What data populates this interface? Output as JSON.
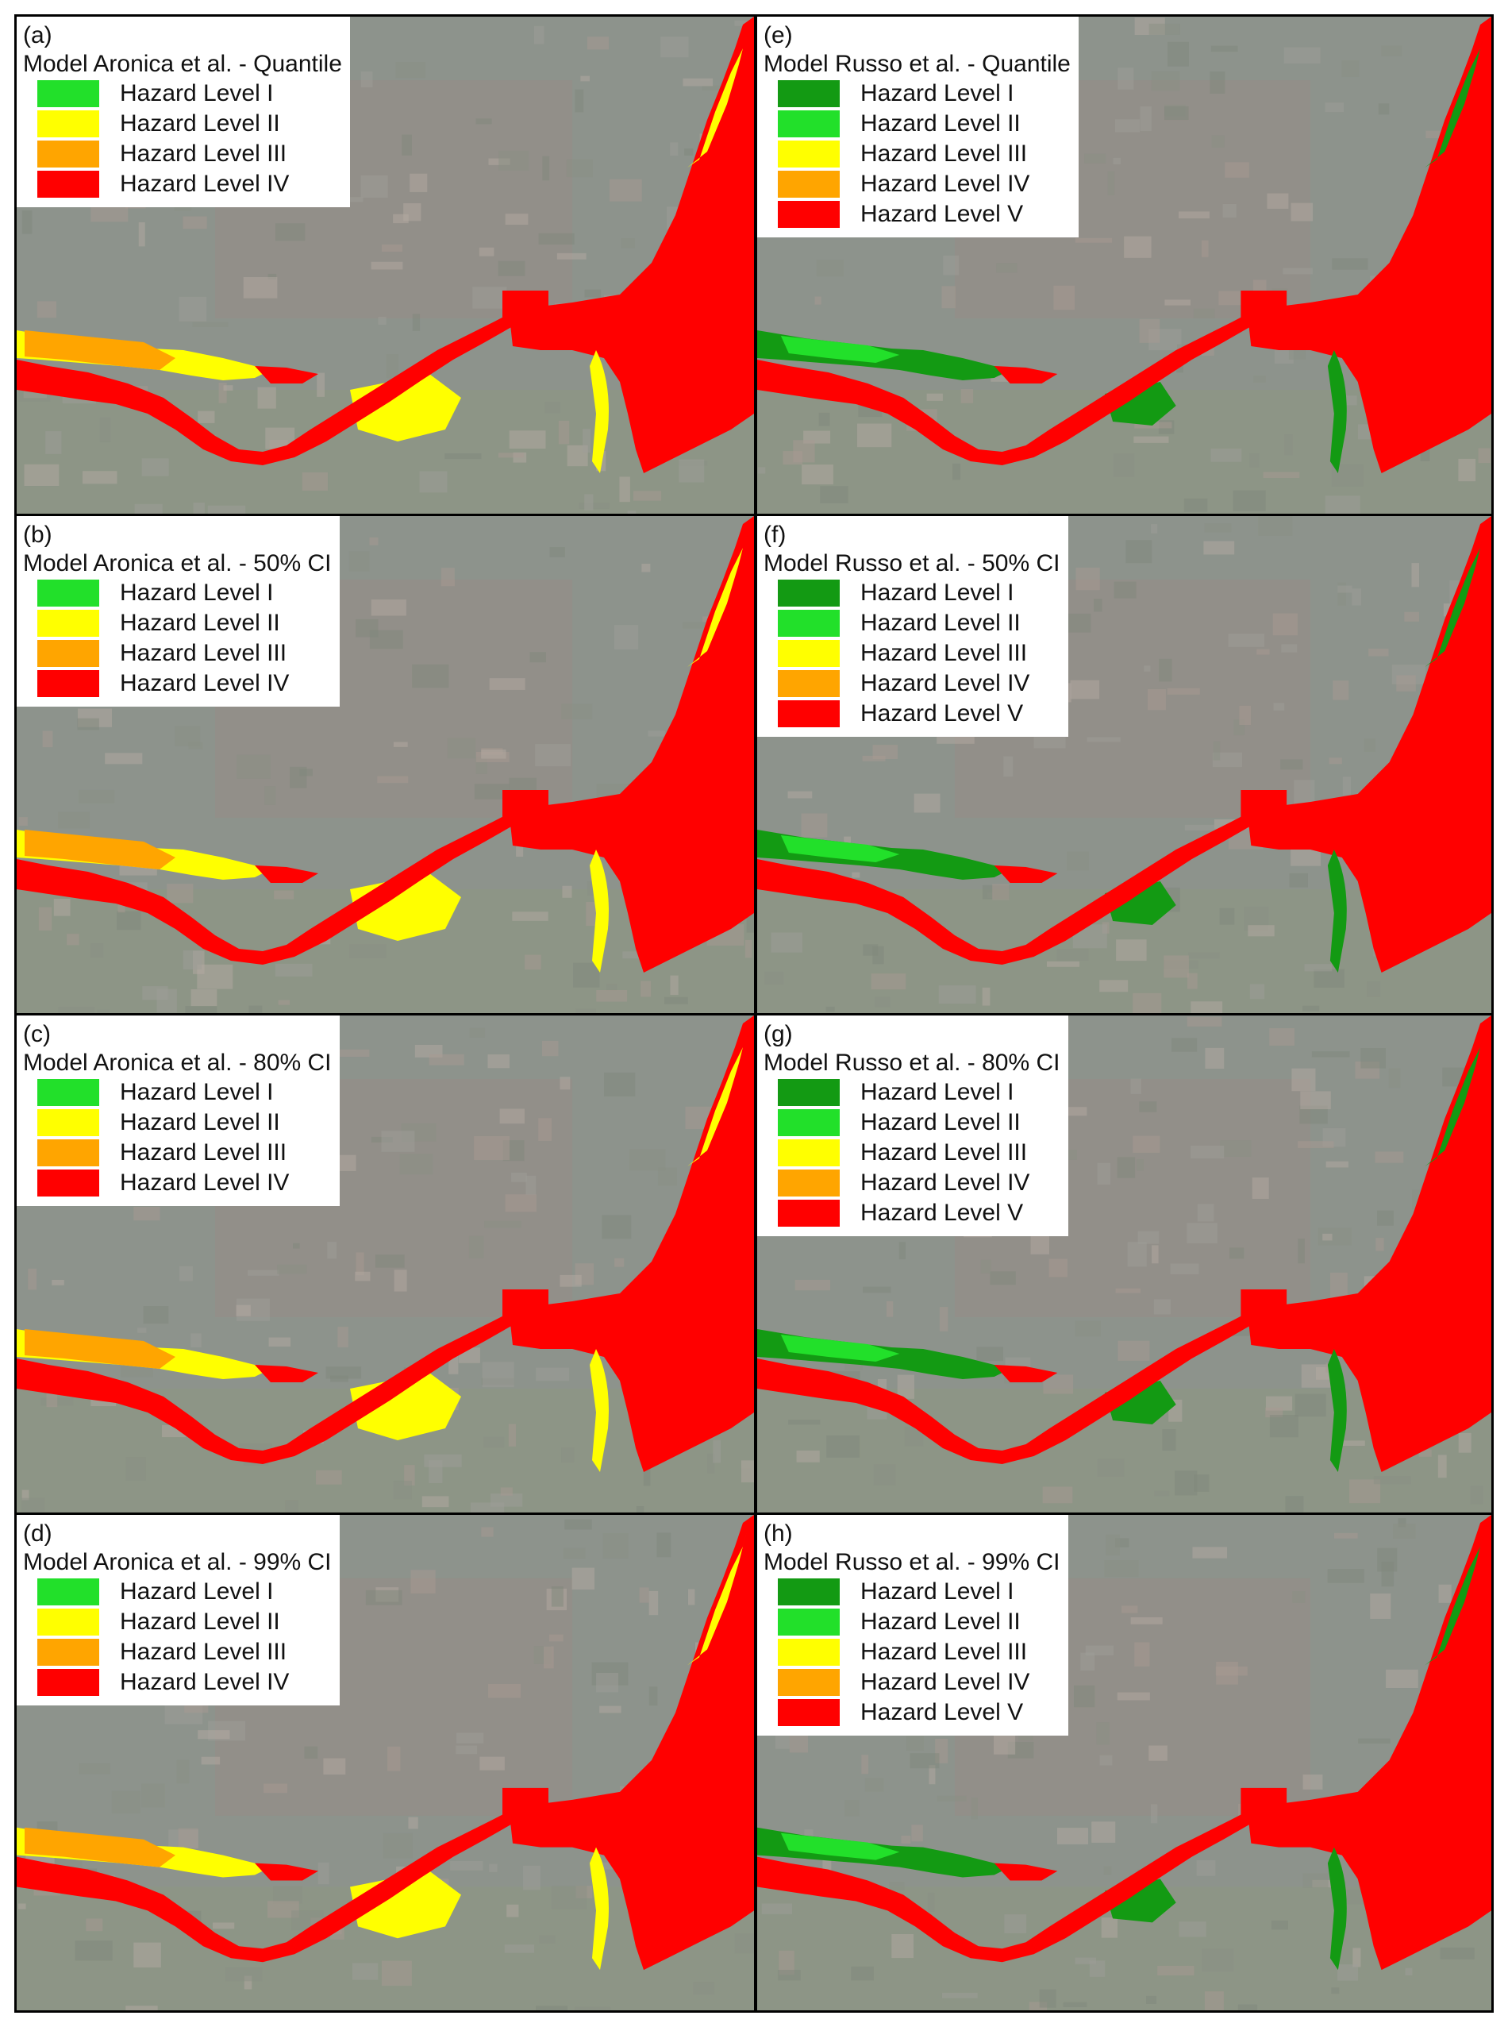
{
  "colors": {
    "level_green_light": "#22e02a",
    "level_green_dark": "#139a13",
    "level_yellow": "#ffff00",
    "level_orange": "#ffa500",
    "level_red": "#ff0000",
    "background_base": "#8d938c"
  },
  "left_legend_colors": [
    "#22e02a",
    "#ffff00",
    "#ffa500",
    "#ff0000"
  ],
  "right_legend_colors": [
    "#139a13",
    "#22e02a",
    "#ffff00",
    "#ffa500",
    "#ff0000"
  ],
  "panels": [
    {
      "letter": "(a)",
      "title": "Model Aronica et al. - Quantile",
      "items": [
        "Hazard Level I",
        "Hazard Level II",
        "Hazard Level III",
        "Hazard Level IV"
      ]
    },
    {
      "letter": "(b)",
      "title": "Model Aronica et al. - 50% CI",
      "items": [
        "Hazard Level I",
        "Hazard Level II",
        "Hazard Level III",
        "Hazard Level IV"
      ]
    },
    {
      "letter": "(c)",
      "title": "Model Aronica et al. - 80% CI",
      "items": [
        "Hazard Level I",
        "Hazard Level II",
        "Hazard Level III",
        "Hazard Level IV"
      ]
    },
    {
      "letter": "(d)",
      "title": "Model Aronica et al. - 99% CI",
      "items": [
        "Hazard Level I",
        "Hazard Level II",
        "Hazard Level III",
        "Hazard Level IV"
      ]
    },
    {
      "letter": "(e)",
      "title": "Model Russo et al. - Quantile",
      "items": [
        "Hazard Level I",
        "Hazard Level II",
        "Hazard Level III",
        "Hazard Level IV",
        "Hazard Level V"
      ]
    },
    {
      "letter": "(f)",
      "title": "Model Russo et al. - 50% CI",
      "items": [
        "Hazard Level I",
        "Hazard Level II",
        "Hazard Level III",
        "Hazard Level IV",
        "Hazard Level V"
      ]
    },
    {
      "letter": "(g)",
      "title": "Model Russo et al. - 80% CI",
      "items": [
        "Hazard Level I",
        "Hazard Level II",
        "Hazard Level III",
        "Hazard Level IV",
        "Hazard Level V"
      ]
    },
    {
      "letter": "(h)",
      "title": "Model Russo et al. - 99% CI",
      "items": [
        "Hazard Level I",
        "Hazard Level II",
        "Hazard Level III",
        "Hazard Level IV",
        "Hazard Level V"
      ]
    }
  ]
}
